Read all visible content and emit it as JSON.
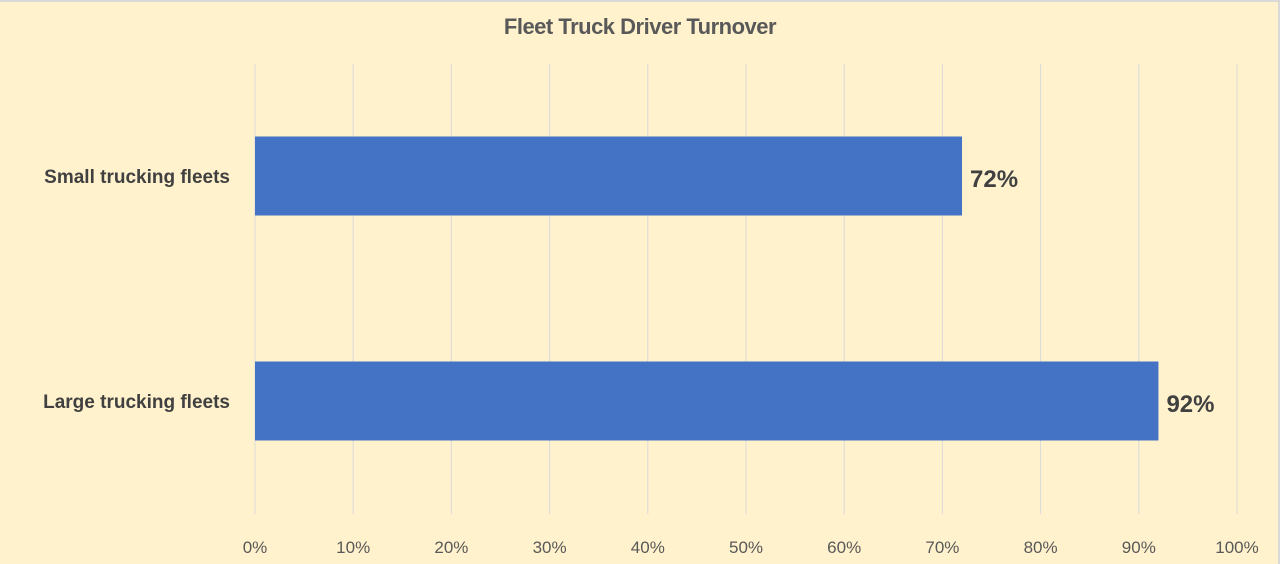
{
  "chart_data": {
    "type": "bar",
    "orientation": "horizontal",
    "title": "Fleet Truck Driver Turnover",
    "categories": [
      "Small trucking fleets",
      "Large trucking fleets"
    ],
    "values": [
      72,
      92
    ],
    "data_labels": [
      "72%",
      "92%"
    ],
    "xlim": [
      0,
      100
    ],
    "x_ticks": [
      "0%",
      "10%",
      "20%",
      "30%",
      "40%",
      "50%",
      "60%",
      "70%",
      "80%",
      "90%",
      "100%"
    ],
    "grid": "vertical",
    "legend": "none",
    "colors": {
      "bar": "#4472C4",
      "background": "#FFF2CC",
      "grid": "#D9D9D9"
    }
  }
}
